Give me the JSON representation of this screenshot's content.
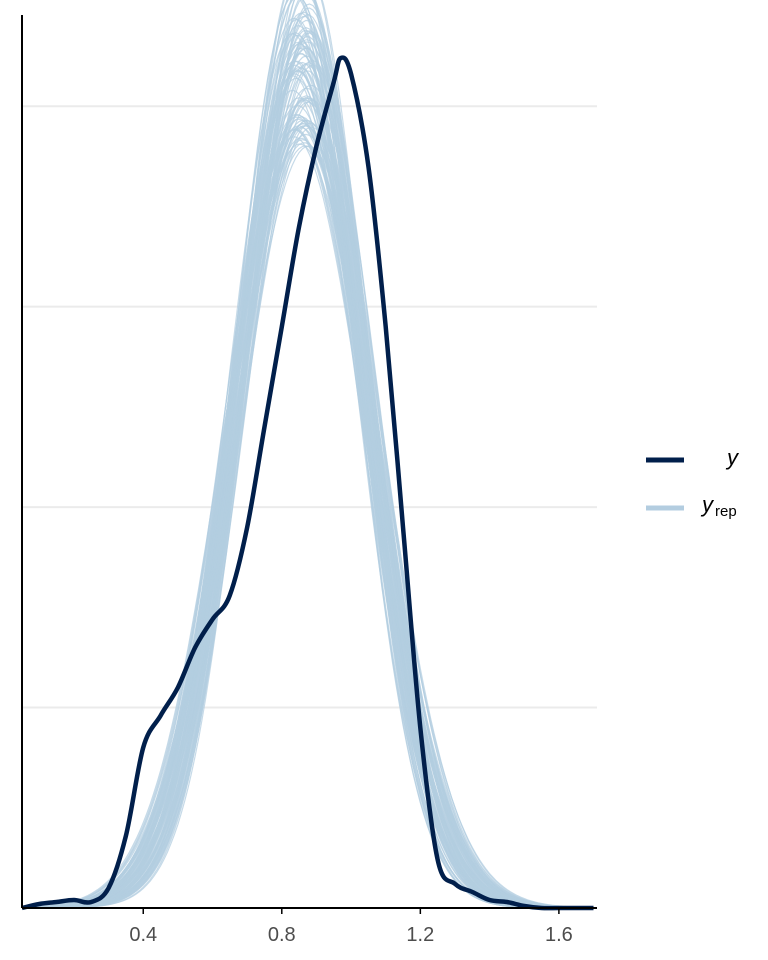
{
  "chart_data": {
    "type": "line",
    "title": "",
    "xlabel": "",
    "ylabel": "",
    "xlim": [
      0.05,
      1.71
    ],
    "ylim": [
      0,
      2.24
    ],
    "x_ticks": [
      0.4,
      0.8,
      1.2,
      1.6
    ],
    "x_tick_labels": [
      "0.4",
      "0.8",
      "1.2",
      "1.6"
    ],
    "y_gridlines": [
      0.5,
      1.0,
      1.5,
      2.0
    ],
    "y_tick_labels_shown": false,
    "legend_position": "right",
    "series": [
      {
        "name": "y",
        "color": "#011f4b",
        "x": [
          0.05,
          0.1,
          0.15,
          0.2,
          0.25,
          0.3,
          0.35,
          0.4,
          0.45,
          0.5,
          0.55,
          0.6,
          0.65,
          0.7,
          0.75,
          0.8,
          0.85,
          0.9,
          0.95,
          0.97,
          1.0,
          1.05,
          1.1,
          1.15,
          1.2,
          1.25,
          1.3,
          1.35,
          1.4,
          1.45,
          1.5,
          1.55,
          1.6,
          1.65,
          1.7
        ],
        "y": [
          0.0,
          0.01,
          0.015,
          0.02,
          0.015,
          0.05,
          0.18,
          0.4,
          0.48,
          0.55,
          0.65,
          0.72,
          0.78,
          0.95,
          1.2,
          1.45,
          1.7,
          1.9,
          2.06,
          2.12,
          2.08,
          1.85,
          1.45,
          0.95,
          0.45,
          0.12,
          0.06,
          0.04,
          0.02,
          0.015,
          0.005,
          0.0,
          0.0,
          0.0,
          0.0
        ]
      }
    ],
    "replicates": {
      "name": "y_rep",
      "color": "#b3cde0",
      "count": 100,
      "base_mean": 0.86,
      "base_sd": 0.19,
      "mean_spread": 0.03,
      "sd_spread": 0.02
    },
    "legend": [
      {
        "label": "y",
        "subscript": "",
        "color": "#011f4b"
      },
      {
        "label": "y",
        "subscript": "rep",
        "color": "#b3cde0"
      }
    ]
  }
}
